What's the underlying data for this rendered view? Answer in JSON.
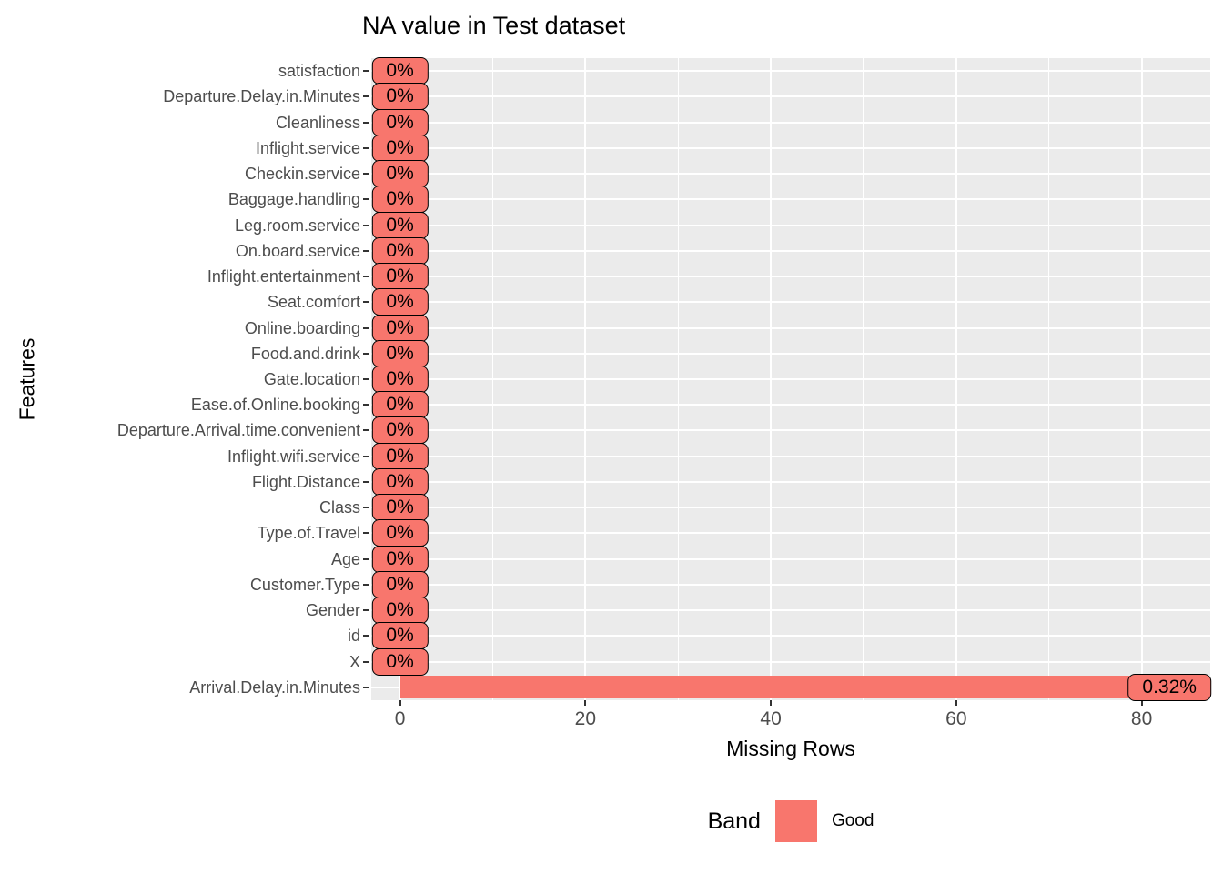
{
  "chart_data": {
    "type": "bar",
    "orientation": "horizontal",
    "title": "NA value in Test dataset",
    "xlabel": "Missing Rows",
    "ylabel": "Features",
    "categories": [
      "satisfaction",
      "Departure.Delay.in.Minutes",
      "Cleanliness",
      "Inflight.service",
      "Checkin.service",
      "Baggage.handling",
      "Leg.room.service",
      "On.board.service",
      "Inflight.entertainment",
      "Seat.comfort",
      "Online.boarding",
      "Food.and.drink",
      "Gate.location",
      "Ease.of.Online.booking",
      "Departure.Arrival.time.convenient",
      "Inflight.wifi.service",
      "Flight.Distance",
      "Class",
      "Type.of.Travel",
      "Age",
      "Customer.Type",
      "Gender",
      "id",
      "X",
      "Arrival.Delay.in.Minutes"
    ],
    "values": [
      0,
      0,
      0,
      0,
      0,
      0,
      0,
      0,
      0,
      0,
      0,
      0,
      0,
      0,
      0,
      0,
      0,
      0,
      0,
      0,
      0,
      0,
      0,
      0,
      83
    ],
    "bar_labels": [
      "0%",
      "0%",
      "0%",
      "0%",
      "0%",
      "0%",
      "0%",
      "0%",
      "0%",
      "0%",
      "0%",
      "0%",
      "0%",
      "0%",
      "0%",
      "0%",
      "0%",
      "0%",
      "0%",
      "0%",
      "0%",
      "0%",
      "0%",
      "0%",
      "0.32%"
    ],
    "x_ticks": [
      0,
      20,
      40,
      60,
      80
    ],
    "x_tick_labels": [
      "0",
      "20",
      "40",
      "60",
      "80"
    ],
    "xlim": [
      -3.1,
      87.4
    ],
    "grid": true,
    "legend": {
      "title": "Band",
      "position": "bottom",
      "items": [
        {
          "label": "Good",
          "color": "#F8766D"
        }
      ]
    },
    "colors": {
      "bar": "#F8766D",
      "panel_bg": "#EBEBEB",
      "gridline": "#FFFFFF",
      "axis_text": "#4D4D4D",
      "tick_mark": "#333333",
      "label_border": "#000000",
      "text": "#000000",
      "background": "#FFFFFF"
    }
  }
}
